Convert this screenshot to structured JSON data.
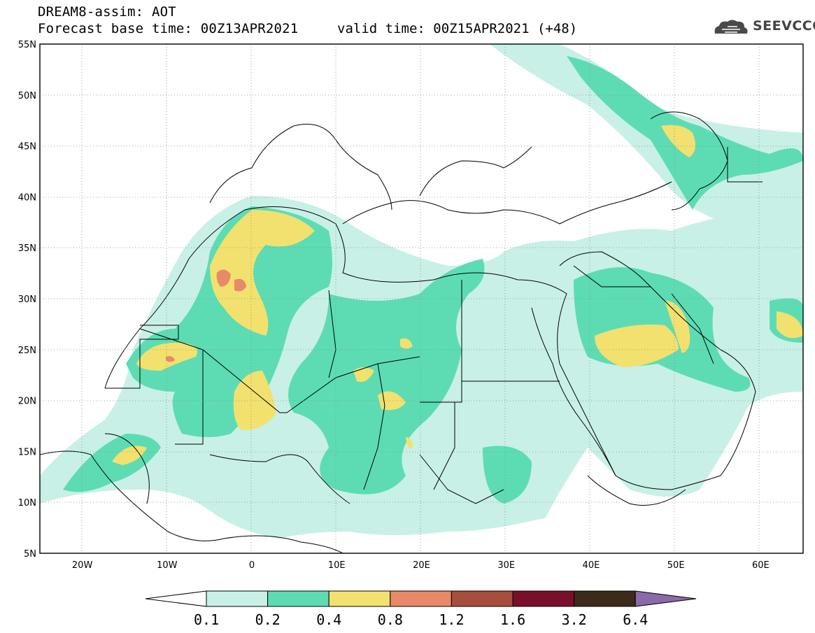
{
  "header": {
    "title_line1": "DREAM8-assim: AOT",
    "title_line2": "Forecast base time: 00Z13APR2021",
    "valid_time": "valid time: 00Z15APR2021 (+48)",
    "logo_text": "SEEVCCC",
    "logo_icon": "cloud-icon"
  },
  "map": {
    "region": "North Africa, Mediterranean, Middle East",
    "lon_range": [
      -25,
      65
    ],
    "lat_range": [
      5,
      55
    ],
    "lat_labels": [
      "55N",
      "50N",
      "45N",
      "40N",
      "35N",
      "30N",
      "25N",
      "20N",
      "15N",
      "10N",
      "5N"
    ],
    "lon_labels": [
      "20W",
      "10W",
      "0",
      "10E",
      "20E",
      "30E",
      "40E",
      "50E",
      "60E"
    ],
    "grid": "dotted",
    "variable": "AOT"
  },
  "legend": {
    "labels": [
      "0.1",
      "0.2",
      "0.4",
      "0.8",
      "1.2",
      "1.6",
      "3.2",
      "6.4"
    ],
    "colors": [
      "#ffffff",
      "#c8f0e6",
      "#5ddcb4",
      "#f2e16e",
      "#e8896a",
      "#a84e3c",
      "#7a0f2c",
      "#3c2a1a",
      "#8a6aa8"
    ]
  }
}
